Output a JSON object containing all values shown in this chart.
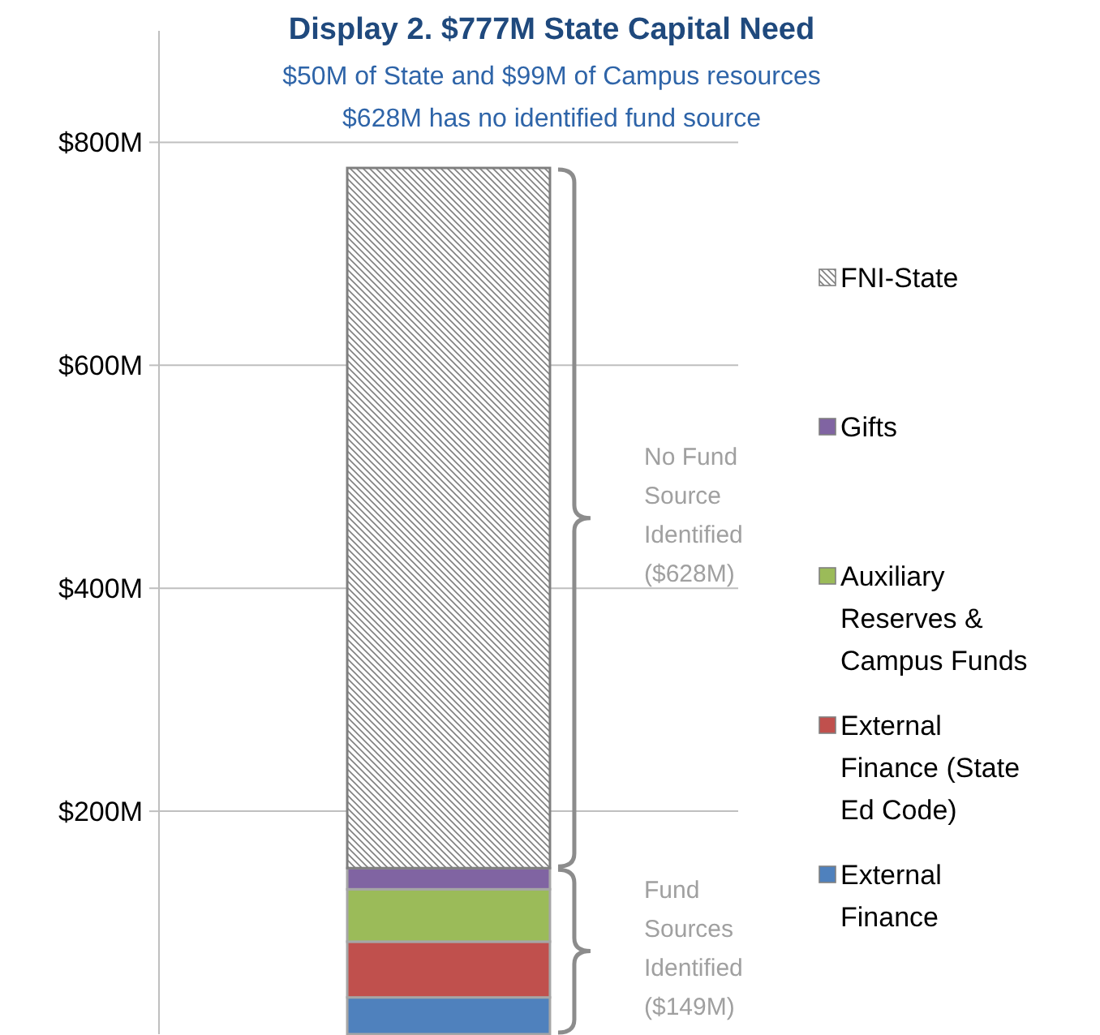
{
  "chart_data": {
    "type": "bar",
    "title": "Display 2. $777M State Capital Need",
    "subtitle": "$50M of State and $99M of Campus resources\n$628M has no identified fund source",
    "categories": [
      null
    ],
    "stacked": true,
    "series": [
      {
        "name": "External Finance",
        "color": "#4f81bd",
        "values": [
          33
        ]
      },
      {
        "name": "External Finance (State Ed Code)",
        "color": "#c0504d",
        "values": [
          50
        ]
      },
      {
        "name": "Auxiliary Reserves & Campus Funds",
        "color": "#9bbb59",
        "values": [
          47
        ]
      },
      {
        "name": "Gifts",
        "color": "#8064a2",
        "values": [
          19
        ]
      },
      {
        "name": "FNI-State",
        "color": "#7f7f7f",
        "values": [
          628
        ]
      }
    ],
    "ylim": [
      0,
      900
    ],
    "yticks": [
      {
        "value": 200,
        "label": "$200M"
      },
      {
        "value": 400,
        "label": "$400M"
      },
      {
        "value": 600,
        "label": "$600M"
      },
      {
        "value": 800,
        "label": "$800M"
      }
    ],
    "grid": "y",
    "legend": "right",
    "annotations": [
      "No Fund Source Identified ($628M)",
      "Fund Sources Identified ($149M)"
    ]
  }
}
